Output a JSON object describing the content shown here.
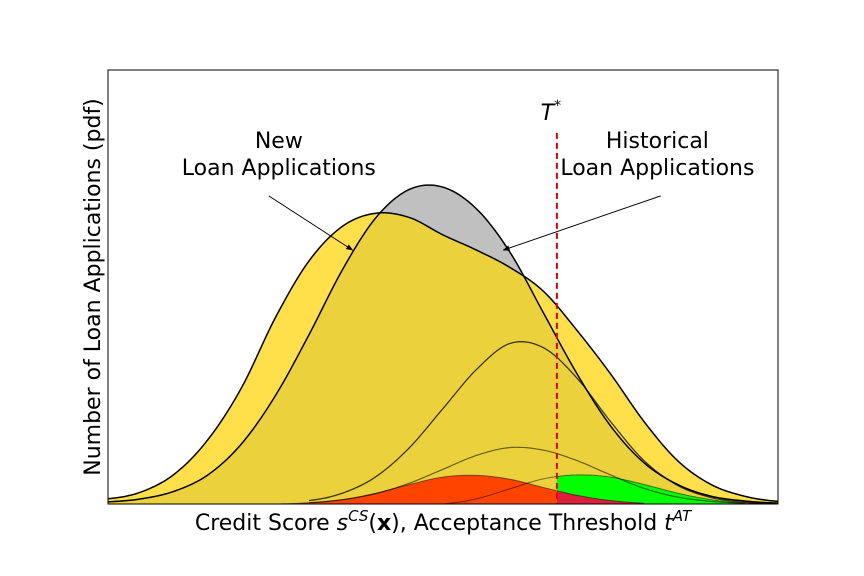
{
  "chart_data": {
    "type": "area",
    "title": "",
    "xlabel": "Credit Score s^CS(x), Acceptance Threshold t^AT",
    "xlabel_parts": {
      "prefix": "Credit Score ",
      "s": "s",
      "s_sup": "CS",
      "open": "(",
      "x": "x",
      "close": "), Acceptance Threshold ",
      "t": "t",
      "t_sup": "AT"
    },
    "ylabel": "Number of Loan Applications (pdf)",
    "xlim": [
      0,
      10
    ],
    "ylim": [
      0,
      1.0
    ],
    "x_ticks_shown": false,
    "y_ticks_shown": false,
    "grid": false,
    "threshold": {
      "label": "T",
      "label_sup": "*",
      "x": 6.7,
      "color": "#e00000"
    },
    "annotations": [
      {
        "id": "new",
        "lines": [
          "New",
          "Loan Applications"
        ],
        "text_x": 2.55,
        "text_y": 0.82,
        "arrow_from": [
          2.4,
          0.71
        ],
        "arrow_to": [
          3.65,
          0.585
        ]
      },
      {
        "id": "historical",
        "lines": [
          "Historical",
          "Loan Applications"
        ],
        "text_x": 8.2,
        "text_y": 0.82,
        "arrow_from": [
          8.25,
          0.71
        ],
        "arrow_to": [
          5.9,
          0.585
        ]
      }
    ],
    "series": [
      {
        "name": "New Loan Applications",
        "color": "#ffe04a",
        "x": [
          0,
          0.5,
          1,
          1.5,
          2,
          2.5,
          3,
          3.5,
          4,
          4.5,
          5,
          5.5,
          6,
          6.5,
          7,
          7.5,
          8,
          8.5,
          9,
          9.5,
          10
        ],
        "values": [
          0.012,
          0.028,
          0.07,
          0.15,
          0.27,
          0.43,
          0.56,
          0.64,
          0.67,
          0.66,
          0.62,
          0.585,
          0.545,
          0.49,
          0.4,
          0.3,
          0.19,
          0.1,
          0.045,
          0.018,
          0.006
        ]
      },
      {
        "name": "Historical Loan Applications",
        "color": "#c0c0c0",
        "x": [
          0,
          0.5,
          1,
          1.5,
          2,
          2.5,
          3,
          3.5,
          4,
          4.5,
          5,
          5.5,
          6,
          6.5,
          7,
          7.5,
          8,
          8.5,
          9,
          9.5,
          10
        ],
        "values": [
          0.005,
          0.012,
          0.03,
          0.068,
          0.14,
          0.25,
          0.39,
          0.54,
          0.66,
          0.725,
          0.73,
          0.68,
          0.58,
          0.44,
          0.3,
          0.18,
          0.095,
          0.045,
          0.018,
          0.007,
          0.002
        ]
      },
      {
        "name": "component-large",
        "x": [
          3,
          3.5,
          4,
          4.5,
          5,
          5.5,
          6,
          6.5,
          7,
          7.5,
          8,
          8.5,
          9,
          9.5,
          10
        ],
        "values": [
          0.008,
          0.025,
          0.063,
          0.13,
          0.22,
          0.31,
          0.37,
          0.36,
          0.29,
          0.19,
          0.1,
          0.043,
          0.015,
          0.004,
          0.001
        ]
      },
      {
        "name": "component-medium",
        "x": [
          3,
          3.5,
          4,
          4.5,
          5,
          5.5,
          6,
          6.5,
          7,
          7.5,
          8,
          8.5,
          9,
          9.5,
          10
        ],
        "values": [
          0.003,
          0.01,
          0.024,
          0.048,
          0.08,
          0.112,
          0.13,
          0.124,
          0.1,
          0.067,
          0.036,
          0.016,
          0.006,
          0.002,
          0.0
        ]
      },
      {
        "name": "component-red",
        "color": "#ff4400",
        "x": [
          2.5,
          3,
          3.5,
          4,
          4.5,
          5,
          5.5,
          6,
          6.5,
          7,
          7.5,
          8
        ],
        "values": [
          0.0,
          0.003,
          0.01,
          0.025,
          0.045,
          0.062,
          0.066,
          0.057,
          0.038,
          0.02,
          0.008,
          0.002
        ]
      },
      {
        "name": "component-green",
        "color": "#00ff00",
        "x": [
          5,
          5.5,
          6,
          6.5,
          7,
          7.5,
          8,
          8.5,
          9,
          9.5
        ],
        "values": [
          0.0,
          0.012,
          0.035,
          0.058,
          0.067,
          0.062,
          0.045,
          0.025,
          0.01,
          0.002
        ]
      }
    ],
    "fill_colors": {
      "overlap": "#ebd23c",
      "overlap_red_green": "#dd1f3c",
      "orange": "#ffa500"
    }
  }
}
